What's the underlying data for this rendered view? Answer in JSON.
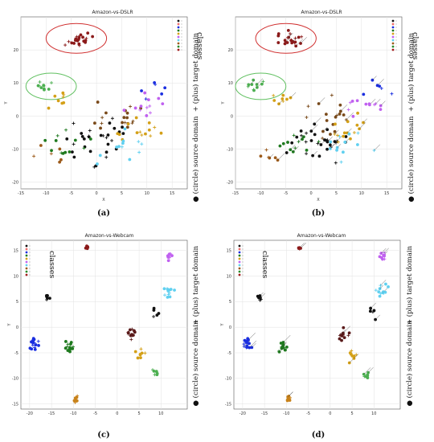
{
  "figure": {
    "panels": [
      {
        "title": "Amazon-vs-DSLR",
        "caption": "(a)",
        "side_classes": "classes",
        "side_plus": "+ (plus) target domain",
        "side_circle": "● (circle) source domain"
      },
      {
        "title": "Amazon-vs-DSLR",
        "caption": "(b)",
        "side_classes": "classes",
        "side_plus": "+ (plus) target domain",
        "side_circle": "● (circle) source domain"
      },
      {
        "title": "Amazon-vs-Webcam",
        "caption": "(c)",
        "side_classes": "classes",
        "side_plus": "+ (plus) target domain",
        "side_circle": "● (circle) source domain"
      },
      {
        "title": "Amazon-vs-Webcam",
        "caption": "(d)",
        "side_classes": "classes",
        "side_plus": "+ (plus) target domain",
        "side_circle": "● (circle) source domain"
      }
    ]
  },
  "class_colors": [
    "#111111",
    "#f06a6a",
    "#1a2ee0",
    "#1f7a1f",
    "#d4a017",
    "#c060f0",
    "#60d0f0",
    "#9c5a1a",
    "#2a8a2a",
    "#a01a1a"
  ],
  "chart_data": [
    {
      "type": "scatter",
      "title": "Amazon-vs-DSLR",
      "xlabel": "X",
      "ylabel": "Y",
      "xlim": [
        -15,
        18
      ],
      "ylim": [
        -22,
        30
      ],
      "xticks": [
        -15,
        -10,
        -5,
        0,
        5,
        10,
        15
      ],
      "yticks": [
        -20,
        -10,
        0,
        10,
        20
      ],
      "grid": true,
      "legend": "top-right",
      "annotations": [
        {
          "shape": "ellipse",
          "color": "#d03030",
          "cx": -4,
          "cy": 23.5,
          "rx": 6,
          "ry": 4.5
        },
        {
          "shape": "ellipse",
          "color": "#60c060",
          "cx": -9,
          "cy": 9,
          "rx": 5,
          "ry": 4
        }
      ],
      "clusters": [
        {
          "cx": -3.5,
          "cy": 23,
          "n": 22,
          "spread": 3.5,
          "color": "#8b1a1a"
        },
        {
          "cx": -11,
          "cy": 9,
          "n": 10,
          "spread": 2.5,
          "color": "#4caf50"
        },
        {
          "cx": -7,
          "cy": 5,
          "n": 8,
          "spread": 3,
          "color": "#d4a017"
        },
        {
          "cx": 0,
          "cy": -8,
          "n": 30,
          "spread": 9,
          "color": "#111111"
        },
        {
          "cx": 4,
          "cy": 0,
          "n": 18,
          "spread": 8,
          "color": "#7a4a1a"
        },
        {
          "cx": 8,
          "cy": -5,
          "n": 14,
          "spread": 7,
          "color": "#d4a017"
        },
        {
          "cx": 10,
          "cy": 3,
          "n": 12,
          "spread": 6,
          "color": "#c060f0"
        },
        {
          "cx": 5,
          "cy": -10,
          "n": 12,
          "spread": 8,
          "color": "#60d0f0"
        },
        {
          "cx": -5,
          "cy": -8,
          "n": 12,
          "spread": 7,
          "color": "#1f7a1f"
        },
        {
          "cx": 12,
          "cy": 8,
          "n": 6,
          "spread": 5,
          "color": "#1a2ee0"
        },
        {
          "cx": -9,
          "cy": -12,
          "n": 6,
          "spread": 4,
          "color": "#9c5a1a"
        }
      ]
    },
    {
      "type": "scatter",
      "title": "Amazon-vs-DSLR",
      "xlabel": "X",
      "ylabel": "Y",
      "xlim": [
        -15,
        18
      ],
      "ylim": [
        -22,
        30
      ],
      "xticks": [
        -15,
        -10,
        -5,
        0,
        5,
        10,
        15
      ],
      "yticks": [
        -20,
        -10,
        0,
        10,
        20
      ],
      "grid": true,
      "legend": "top-right",
      "annotations": [
        {
          "shape": "ellipse",
          "color": "#d03030",
          "cx": -5,
          "cy": 23.5,
          "rx": 6,
          "ry": 4.5
        },
        {
          "shape": "ellipse",
          "color": "#60c060",
          "cx": -10,
          "cy": 9,
          "rx": 5,
          "ry": 4
        }
      ],
      "clusters": [
        {
          "cx": -4,
          "cy": 23,
          "n": 22,
          "spread": 3.5,
          "color": "#8b1a1a"
        },
        {
          "cx": -11,
          "cy": 9,
          "n": 10,
          "spread": 2.5,
          "color": "#4caf50"
        },
        {
          "cx": -6,
          "cy": 5,
          "n": 8,
          "spread": 3,
          "color": "#d4a017"
        },
        {
          "cx": 1,
          "cy": -8,
          "n": 30,
          "spread": 9,
          "color": "#111111"
        },
        {
          "cx": 4,
          "cy": 0,
          "n": 18,
          "spread": 8,
          "color": "#7a4a1a"
        },
        {
          "cx": 8,
          "cy": -5,
          "n": 14,
          "spread": 7,
          "color": "#d4a017"
        },
        {
          "cx": 10,
          "cy": 3,
          "n": 12,
          "spread": 6,
          "color": "#c060f0"
        },
        {
          "cx": 6,
          "cy": -10,
          "n": 12,
          "spread": 8,
          "color": "#60d0f0"
        },
        {
          "cx": -4,
          "cy": -8,
          "n": 12,
          "spread": 7,
          "color": "#1f7a1f"
        },
        {
          "cx": 13,
          "cy": 8,
          "n": 6,
          "spread": 5,
          "color": "#1a2ee0"
        },
        {
          "cx": -8,
          "cy": -12,
          "n": 6,
          "spread": 4,
          "color": "#9c5a1a"
        }
      ]
    },
    {
      "type": "scatter",
      "title": "Amazon-vs-Webcam",
      "xlabel": "X",
      "ylabel": "Y",
      "xlim": [
        -22,
        16
      ],
      "ylim": [
        -16,
        17
      ],
      "xticks": [
        -20,
        -15,
        -10,
        -5,
        0,
        5,
        10
      ],
      "yticks": [
        -15,
        -10,
        -5,
        0,
        5,
        10,
        15
      ],
      "grid": true,
      "legend": "top-left",
      "clusters": [
        {
          "cx": -7,
          "cy": 15.5,
          "n": 6,
          "spread": 0.6,
          "color": "#8b1a1a"
        },
        {
          "cx": -16,
          "cy": 6,
          "n": 7,
          "spread": 1,
          "color": "#111111"
        },
        {
          "cx": -19,
          "cy": -3.2,
          "n": 16,
          "spread": 1.6,
          "color": "#1a2ee0"
        },
        {
          "cx": -11,
          "cy": -3.8,
          "n": 14,
          "spread": 1.6,
          "color": "#1f7a1f"
        },
        {
          "cx": -9.5,
          "cy": -14,
          "n": 8,
          "spread": 1,
          "color": "#c8821a"
        },
        {
          "cx": 12,
          "cy": 14,
          "n": 9,
          "spread": 1.3,
          "color": "#c060f0"
        },
        {
          "cx": 12,
          "cy": 7,
          "n": 12,
          "spread": 1.8,
          "color": "#60d0f0"
        },
        {
          "cx": 3,
          "cy": -1.5,
          "n": 12,
          "spread": 1.8,
          "color": "#5a1a1a"
        },
        {
          "cx": 5,
          "cy": -5.5,
          "n": 8,
          "spread": 2,
          "color": "#d4a017"
        },
        {
          "cx": 8.5,
          "cy": -9,
          "n": 7,
          "spread": 1.3,
          "color": "#4caf50"
        },
        {
          "cx": 9,
          "cy": 3,
          "n": 5,
          "spread": 1.8,
          "color": "#111111"
        }
      ]
    },
    {
      "type": "scatter",
      "title": "Amazon-vs-Webcam",
      "xlabel": "X",
      "ylabel": "Y",
      "xlim": [
        -22,
        16
      ],
      "ylim": [
        -16,
        17
      ],
      "xticks": [
        -20,
        -15,
        -10,
        -5,
        0,
        5,
        10
      ],
      "yticks": [
        -15,
        -10,
        -5,
        0,
        5,
        10,
        15
      ],
      "grid": true,
      "legend": "top-left",
      "clusters": [
        {
          "cx": -7,
          "cy": 15.5,
          "n": 6,
          "spread": 0.6,
          "color": "#8b1a1a"
        },
        {
          "cx": -16,
          "cy": 6,
          "n": 7,
          "spread": 1,
          "color": "#111111"
        },
        {
          "cx": -19,
          "cy": -3.2,
          "n": 16,
          "spread": 1.6,
          "color": "#1a2ee0"
        },
        {
          "cx": -11,
          "cy": -3.8,
          "n": 14,
          "spread": 1.6,
          "color": "#1f7a1f"
        },
        {
          "cx": -9.5,
          "cy": -14,
          "n": 8,
          "spread": 1,
          "color": "#c8821a"
        },
        {
          "cx": 12,
          "cy": 14,
          "n": 9,
          "spread": 1.3,
          "color": "#c060f0"
        },
        {
          "cx": 12,
          "cy": 7,
          "n": 12,
          "spread": 1.8,
          "color": "#60d0f0"
        },
        {
          "cx": 3,
          "cy": -1.5,
          "n": 12,
          "spread": 1.8,
          "color": "#5a1a1a"
        },
        {
          "cx": 5,
          "cy": -5.5,
          "n": 8,
          "spread": 2,
          "color": "#d4a017"
        },
        {
          "cx": 8.5,
          "cy": -9,
          "n": 7,
          "spread": 1.3,
          "color": "#4caf50"
        },
        {
          "cx": 9,
          "cy": 3,
          "n": 5,
          "spread": 1.8,
          "color": "#111111"
        }
      ]
    }
  ]
}
